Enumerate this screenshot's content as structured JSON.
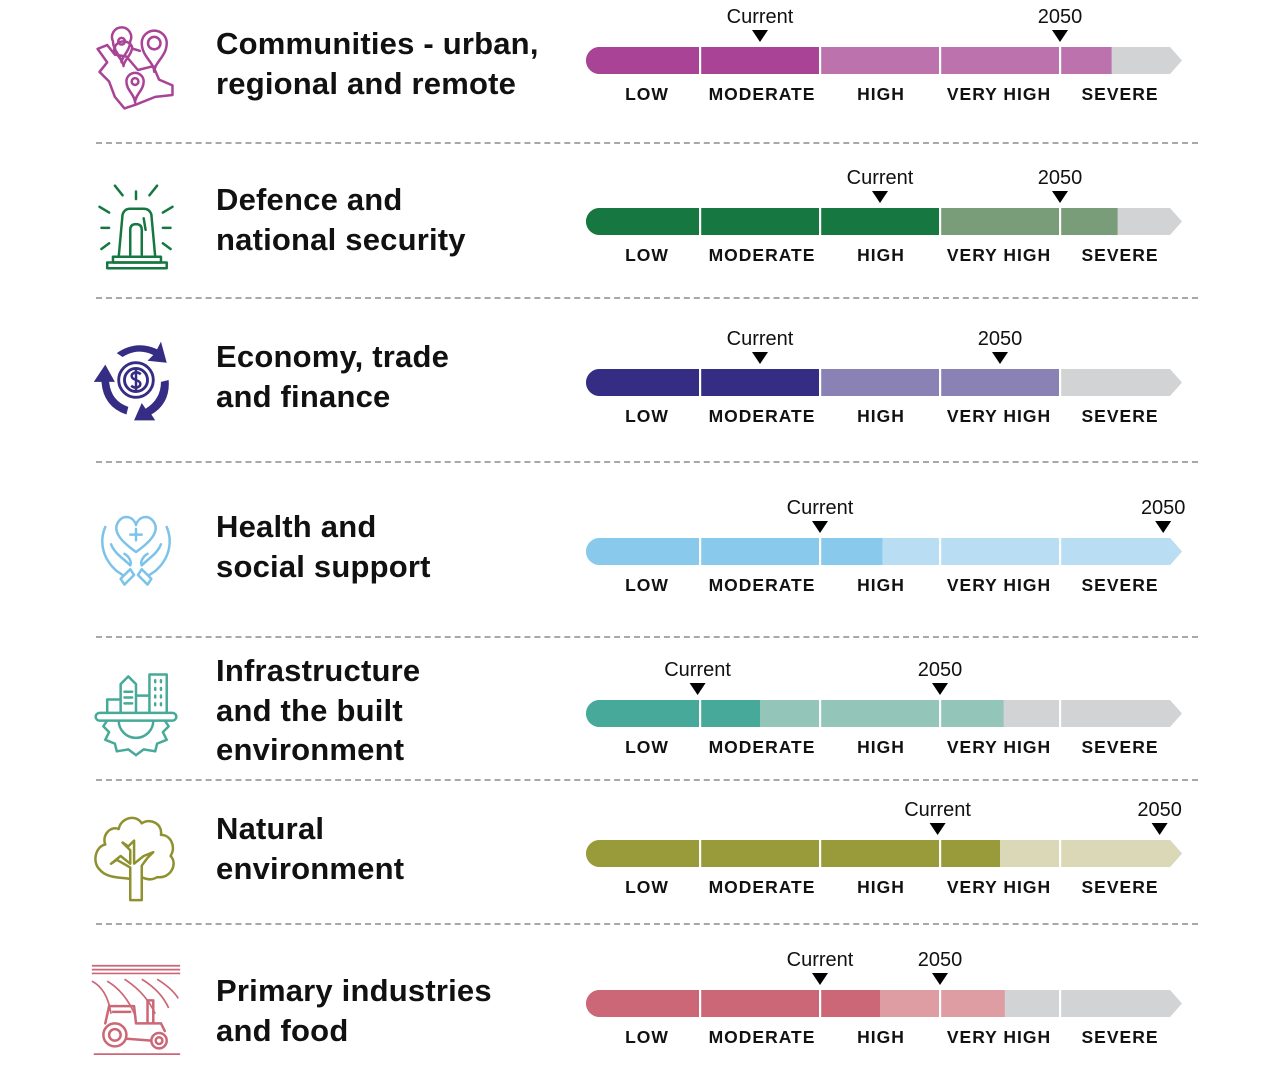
{
  "chart_data": {
    "type": "table",
    "title": "",
    "scale": [
      "LOW",
      "MODERATE",
      "HIGH",
      "VERY HIGH",
      "SEVERE"
    ],
    "scale_range": [
      0,
      5
    ],
    "marker_labels": {
      "current": "Current",
      "future": "2050"
    },
    "rows": [
      {
        "name": "Communities - urban, regional and remote",
        "title_lines": [
          "Communities - urban,",
          "regional and remote"
        ],
        "icon": "map-pins-icon",
        "color_dark": "#a84396",
        "color_light": "#bb72ad",
        "current": 1.5,
        "future": 4.0,
        "dark_fill": 2.0,
        "light_fill": 4.43
      },
      {
        "name": "Defence and national security",
        "title_lines": [
          "Defence and",
          "national security"
        ],
        "icon": "siren-icon",
        "color_dark": "#167740",
        "color_light": "#799d79",
        "current": 2.5,
        "future": 4.0,
        "dark_fill": 3.0,
        "light_fill": 4.48
      },
      {
        "name": "Economy, trade and finance",
        "title_lines": [
          "Economy, trade",
          "and finance"
        ],
        "icon": "dollar-cycle-icon",
        "color_dark": "#352d84",
        "color_light": "#8a82b4",
        "current": 1.5,
        "future": 3.5,
        "dark_fill": 2.0,
        "light_fill": 4.0
      },
      {
        "name": "Health and social support",
        "title_lines": [
          "Health and",
          "social support"
        ],
        "icon": "hands-heart-icon",
        "color_dark": "#89c9eb",
        "color_light": "#b9ddf2",
        "current": 2.0,
        "future": 4.86,
        "dark_fill": 2.52,
        "light_fill": 5.0
      },
      {
        "name": "Infrastructure and the built environment",
        "title_lines": [
          "Infrastructure",
          "and the built",
          "environment"
        ],
        "icon": "city-gear-icon",
        "color_dark": "#46a999",
        "color_light": "#93c5b9",
        "current": 0.98,
        "future": 3.0,
        "dark_fill": 1.5,
        "light_fill": 3.53
      },
      {
        "name": "Natural environment",
        "title_lines": [
          "Natural",
          "environment"
        ],
        "icon": "tree-icon",
        "color_dark": "#999a3a",
        "color_light": "#dad8b6",
        "current": 2.98,
        "future": 4.83,
        "dark_fill": 3.5,
        "light_fill": 5.0
      },
      {
        "name": "Primary industries and food",
        "title_lines": [
          "Primary industries",
          "and food"
        ],
        "icon": "tractor-field-icon",
        "color_dark": "#cb6776",
        "color_light": "#de9da3",
        "current": 2.0,
        "future": 3.0,
        "dark_fill": 2.5,
        "light_fill": 3.54
      }
    ],
    "grey_color": "#d2d3d5"
  }
}
